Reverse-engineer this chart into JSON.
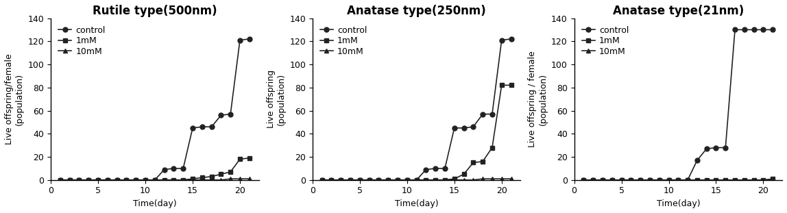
{
  "panels": [
    {
      "title": "Rutile type(500nm)",
      "ylabel": "Live offspring/female\n(population)",
      "xlabel": "Time(day)",
      "ylim": [
        0,
        140
      ],
      "yticks": [
        0,
        20,
        40,
        60,
        80,
        100,
        120,
        140
      ],
      "xlim": [
        0,
        22
      ],
      "xticks": [
        0,
        5,
        10,
        15,
        20
      ],
      "series": {
        "control": {
          "x": [
            1,
            2,
            3,
            4,
            5,
            6,
            7,
            8,
            9,
            10,
            11,
            12,
            13,
            14,
            15,
            16,
            17,
            18,
            19,
            20,
            21
          ],
          "y": [
            0,
            0,
            0,
            0,
            0,
            0,
            0,
            0,
            0,
            0,
            0,
            9,
            10,
            10,
            45,
            46,
            46,
            56,
            57,
            121,
            122
          ],
          "marker": "o",
          "label": "control"
        },
        "1mM": {
          "x": [
            1,
            2,
            3,
            4,
            5,
            6,
            7,
            8,
            9,
            10,
            11,
            12,
            13,
            14,
            15,
            16,
            17,
            18,
            19,
            20,
            21
          ],
          "y": [
            0,
            0,
            0,
            0,
            0,
            0,
            0,
            0,
            0,
            0,
            0,
            0,
            0,
            0,
            1,
            2,
            3,
            5,
            7,
            18,
            19
          ],
          "marker": "s",
          "label": "1mM"
        },
        "10mM": {
          "x": [
            1,
            2,
            3,
            4,
            5,
            6,
            7,
            8,
            9,
            10,
            11,
            12,
            13,
            14,
            15,
            16,
            17,
            18,
            19,
            20,
            21
          ],
          "y": [
            0,
            0,
            0,
            0,
            0,
            0,
            0,
            0,
            0,
            0,
            0,
            0,
            0,
            0,
            0,
            0,
            0,
            0,
            1,
            1,
            1
          ],
          "marker": "^",
          "label": "10mM"
        }
      }
    },
    {
      "title": "Anatase type(250nm)",
      "ylabel": "Live offspring\n(population)",
      "xlabel": "Time(day)",
      "ylim": [
        0,
        140
      ],
      "yticks": [
        0,
        20,
        40,
        60,
        80,
        100,
        120,
        140
      ],
      "xlim": [
        0,
        22
      ],
      "xticks": [
        0,
        5,
        10,
        15,
        20
      ],
      "series": {
        "control": {
          "x": [
            1,
            2,
            3,
            4,
            5,
            6,
            7,
            8,
            9,
            10,
            11,
            12,
            13,
            14,
            15,
            16,
            17,
            18,
            19,
            20,
            21
          ],
          "y": [
            0,
            0,
            0,
            0,
            0,
            0,
            0,
            0,
            0,
            0,
            0,
            9,
            10,
            10,
            45,
            45,
            46,
            57,
            57,
            121,
            122
          ],
          "marker": "o",
          "label": "control"
        },
        "1mM": {
          "x": [
            1,
            2,
            3,
            4,
            5,
            6,
            7,
            8,
            9,
            10,
            11,
            12,
            13,
            14,
            15,
            16,
            17,
            18,
            19,
            20,
            21
          ],
          "y": [
            0,
            0,
            0,
            0,
            0,
            0,
            0,
            0,
            0,
            0,
            0,
            0,
            0,
            0,
            1,
            5,
            15,
            16,
            28,
            82,
            82
          ],
          "marker": "s",
          "label": "1mM"
        },
        "10mM": {
          "x": [
            1,
            2,
            3,
            4,
            5,
            6,
            7,
            8,
            9,
            10,
            11,
            12,
            13,
            14,
            15,
            16,
            17,
            18,
            19,
            20,
            21
          ],
          "y": [
            0,
            0,
            0,
            0,
            0,
            0,
            0,
            0,
            0,
            0,
            0,
            0,
            0,
            0,
            0,
            0,
            0,
            1,
            1,
            1,
            1
          ],
          "marker": "^",
          "label": "10mM"
        }
      }
    },
    {
      "title": "Anatase type(21nm)",
      "ylabel": "Live offspring / female\n(population)",
      "xlabel": "Time(day)",
      "ylim": [
        0,
        140
      ],
      "yticks": [
        0,
        20,
        40,
        60,
        80,
        100,
        120,
        140
      ],
      "xlim": [
        0,
        22
      ],
      "xticks": [
        0,
        5,
        10,
        15,
        20
      ],
      "series": {
        "control": {
          "x": [
            1,
            2,
            3,
            4,
            5,
            6,
            7,
            8,
            9,
            10,
            11,
            12,
            13,
            14,
            15,
            16,
            17,
            18,
            19,
            20,
            21
          ],
          "y": [
            0,
            0,
            0,
            0,
            0,
            0,
            0,
            0,
            0,
            0,
            0,
            0,
            17,
            27,
            28,
            28,
            130,
            130,
            130,
            130,
            130
          ],
          "marker": "o",
          "label": "control"
        },
        "1mM": {
          "x": [
            1,
            2,
            3,
            4,
            5,
            6,
            7,
            8,
            9,
            10,
            11,
            12,
            13,
            14,
            15,
            16,
            17,
            18,
            19,
            20,
            21
          ],
          "y": [
            0,
            0,
            0,
            0,
            0,
            0,
            0,
            0,
            0,
            0,
            0,
            0,
            0,
            0,
            0,
            0,
            0,
            0,
            0,
            0,
            1
          ],
          "marker": "s",
          "label": "1mM"
        },
        "10mM": {
          "x": [
            1,
            2,
            3,
            4,
            5,
            6,
            7,
            8,
            9,
            10,
            11,
            12,
            13,
            14,
            15,
            16,
            17,
            18,
            19,
            20,
            21
          ],
          "y": [
            0,
            0,
            0,
            0,
            0,
            0,
            0,
            0,
            0,
            0,
            0,
            0,
            0,
            0,
            0,
            0,
            0,
            0,
            0,
            0,
            0
          ],
          "marker": "^",
          "label": "10mM"
        }
      }
    }
  ],
  "line_color": "#222222",
  "marker_size": 5,
  "linewidth": 1.2,
  "title_fontsize": 12,
  "label_fontsize": 9,
  "tick_fontsize": 9,
  "legend_fontsize": 9
}
